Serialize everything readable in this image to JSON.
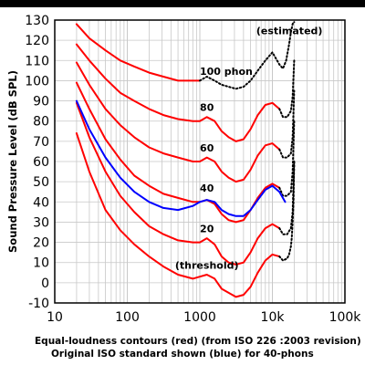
{
  "chart_data": {
    "type": "line",
    "title": "",
    "ylabel": "Sound Pressure Level (dB SPL)",
    "xlabel": "",
    "x_scale": "log",
    "xlim": [
      10,
      100000
    ],
    "ylim": [
      -10,
      130
    ],
    "x_ticks": [
      10,
      100,
      1000,
      10000,
      100000
    ],
    "x_tick_labels": [
      "10",
      "100",
      "1000",
      "10k",
      "100k"
    ],
    "y_ticks": [
      -10,
      0,
      10,
      20,
      30,
      40,
      50,
      60,
      70,
      80,
      90,
      100,
      110,
      120,
      130
    ],
    "y_tick_labels": [
      "-10",
      "0",
      "10",
      "20",
      "30",
      "40",
      "50",
      "60",
      "70",
      "80",
      "90",
      "100",
      "110",
      "120",
      "130"
    ],
    "grid": true,
    "colors": {
      "red": "#ff0000",
      "blue": "#0000ff",
      "black": "#000000",
      "grid": "#c8c8c8"
    },
    "series": [
      {
        "name": "(threshold)",
        "color": "#ff0000",
        "style": "solid",
        "x": [
          20,
          30,
          50,
          80,
          125,
          200,
          315,
          500,
          800,
          1000,
          1250,
          1600,
          2000,
          2500,
          3150,
          4000,
          5000,
          6300,
          8000,
          10000,
          12500
        ],
        "y": [
          74,
          55,
          36,
          26,
          19,
          13,
          8,
          4,
          2,
          3,
          4,
          2,
          -3,
          -5,
          -7,
          -6,
          -2,
          5,
          11,
          14,
          13
        ]
      },
      {
        "name": "20",
        "color": "#ff0000",
        "style": "solid",
        "x": [
          20,
          30,
          50,
          80,
          125,
          200,
          315,
          500,
          800,
          1000,
          1250,
          1600,
          2000,
          2500,
          3150,
          4000,
          5000,
          6300,
          8000,
          10000,
          12500
        ],
        "y": [
          89,
          72,
          55,
          43,
          35,
          28,
          24,
          21,
          20,
          20,
          22,
          19,
          13,
          10,
          9,
          10,
          15,
          22,
          27,
          29,
          27
        ]
      },
      {
        "name": "40",
        "color": "#ff0000",
        "style": "solid",
        "x": [
          20,
          30,
          50,
          80,
          125,
          200,
          315,
          500,
          800,
          1000,
          1250,
          1600,
          2000,
          2500,
          3150,
          4000,
          5000,
          6300,
          8000,
          10000,
          12500
        ],
        "y": [
          99,
          86,
          71,
          61,
          53,
          48,
          44,
          42,
          40,
          40,
          41,
          39,
          34,
          31,
          30,
          31,
          36,
          42,
          47,
          49,
          47
        ]
      },
      {
        "name": "60",
        "color": "#ff0000",
        "style": "solid",
        "x": [
          20,
          30,
          50,
          80,
          125,
          200,
          315,
          500,
          800,
          1000,
          1250,
          1600,
          2000,
          2500,
          3150,
          4000,
          5000,
          6300,
          8000,
          10000,
          12500
        ],
        "y": [
          109,
          98,
          86,
          78,
          72,
          67,
          64,
          62,
          60,
          60,
          62,
          60,
          55,
          52,
          50,
          51,
          56,
          63,
          68,
          69,
          66
        ]
      },
      {
        "name": "80",
        "color": "#ff0000",
        "style": "solid",
        "x": [
          20,
          30,
          50,
          80,
          125,
          200,
          315,
          500,
          800,
          1000,
          1250,
          1600,
          2000,
          2500,
          3150,
          4000,
          5000,
          6300,
          8000,
          10000,
          12500
        ],
        "y": [
          118,
          110,
          101,
          94,
          90,
          86,
          83,
          81,
          80,
          80,
          82,
          80,
          75,
          72,
          70,
          71,
          76,
          83,
          88,
          89,
          86
        ]
      },
      {
        "name": "100 phon",
        "color": "#ff0000",
        "style": "solid",
        "x": [
          20,
          30,
          50,
          80,
          125,
          200,
          315,
          500,
          800,
          1000
        ],
        "y": [
          128,
          121,
          115,
          110,
          107,
          104,
          102,
          100,
          100,
          100
        ]
      },
      {
        "name": "(estimated)",
        "color": "#000000",
        "style": "dotted",
        "x": [
          1000,
          1250,
          1600,
          2000,
          2500,
          3150,
          4000,
          5000,
          6300,
          8000,
          10000,
          12500,
          14000,
          15500,
          17000,
          18000,
          19000,
          19500,
          20000
        ],
        "y": [
          100,
          102,
          100,
          98,
          97,
          96,
          97,
          100,
          105,
          110,
          114,
          108,
          106,
          110,
          118,
          124,
          128,
          129,
          129
        ]
      },
      {
        "color": "#000000",
        "style": "dotted",
        "x": [
          12500,
          14000,
          16000,
          18000,
          19000,
          20000
        ],
        "y": [
          86,
          82,
          82,
          85,
          92,
          110
        ]
      },
      {
        "color": "#000000",
        "style": "dotted",
        "x": [
          12500,
          14000,
          16000,
          18000,
          19000,
          20000
        ],
        "y": [
          66,
          62,
          62,
          64,
          72,
          95
        ]
      },
      {
        "color": "#000000",
        "style": "dotted",
        "x": [
          12500,
          14000,
          16000,
          18000,
          19000,
          20000
        ],
        "y": [
          47,
          43,
          43,
          45,
          55,
          80
        ]
      },
      {
        "color": "#000000",
        "style": "dotted",
        "x": [
          12500,
          14000,
          16000,
          18000,
          19000,
          20000
        ],
        "y": [
          27,
          24,
          24,
          27,
          35,
          60
        ]
      },
      {
        "color": "#000000",
        "style": "dotted",
        "x": [
          12500,
          14000,
          16000,
          17000,
          18000,
          18500,
          19000,
          19500,
          20000
        ],
        "y": [
          13,
          11,
          12,
          14,
          18,
          22,
          30,
          40,
          60
        ]
      },
      {
        "color": "#0000ff",
        "style": "solid",
        "x": [
          20,
          30,
          50,
          80,
          125,
          200,
          315,
          500,
          800,
          1000,
          1250,
          1600,
          2000,
          2500,
          3150,
          4000,
          5000,
          6300,
          8000,
          10000,
          12500,
          15000
        ],
        "y": [
          90,
          76,
          62,
          52,
          45,
          40,
          37,
          36,
          38,
          40,
          41,
          40,
          36,
          34,
          33,
          33,
          36,
          41,
          46,
          48,
          45,
          40
        ]
      }
    ],
    "annotations": [
      {
        "text": "(estimated)",
        "x": 6000,
        "y": 123,
        "anchor": "start"
      },
      {
        "text": "100 phon",
        "x": 1000,
        "y": 103,
        "anchor": "start"
      },
      {
        "text": "80",
        "x": 1250,
        "y": 85,
        "anchor": "middle"
      },
      {
        "text": "60",
        "x": 1250,
        "y": 65,
        "anchor": "middle"
      },
      {
        "text": "40",
        "x": 1250,
        "y": 45,
        "anchor": "middle"
      },
      {
        "text": "20",
        "x": 1250,
        "y": 25,
        "anchor": "middle"
      },
      {
        "text": "(threshold)",
        "x": 1250,
        "y": 7,
        "anchor": "middle"
      }
    ],
    "caption_lines": [
      "Equal-loudness contours (red) (from ISO 226 :2003 revision)",
      "Original ISO standard shown (blue) for 40-phons"
    ]
  }
}
